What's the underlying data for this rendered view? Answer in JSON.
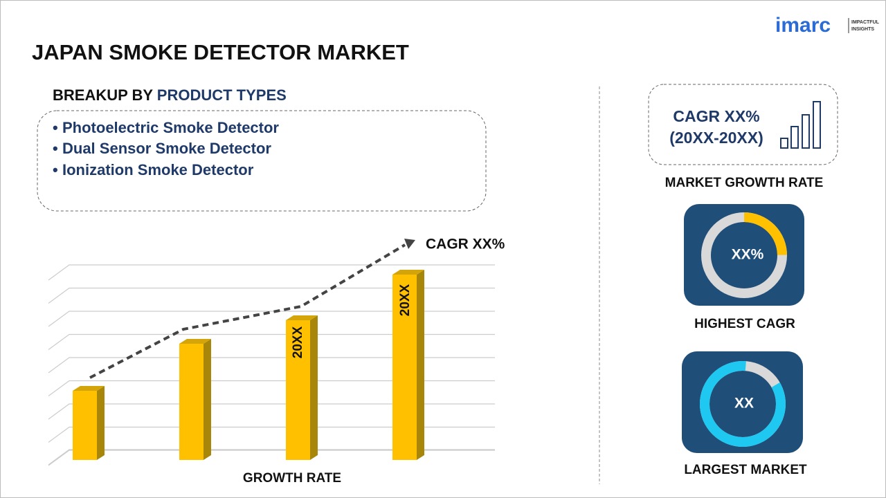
{
  "header": {
    "title": "JAPAN SMOKE DETECTOR MARKET",
    "logo": "imarc",
    "logo_tagline": [
      "IMPACTFUL",
      "INSIGHTS"
    ]
  },
  "breakup": {
    "heading": "BREAKUP BY",
    "heading_highlight": "PRODUCT TYPES",
    "items": [
      "Photoelectric Smoke Detector",
      "Dual Sensor Smoke Detector",
      "Ionization Smoke Detector"
    ]
  },
  "growth_chart": {
    "trend_label": "CAGR XX%",
    "bar_labels": [
      "20XX",
      "20XX"
    ],
    "axis_label": "GROWTH RATE"
  },
  "cagr_box": {
    "lines": [
      "CAGR XX%",
      "(20XX-20XX)"
    ],
    "caption": "MARKET GROWTH RATE"
  },
  "highest_cagr": {
    "value": "XX%",
    "caption": "HIGHEST CAGR"
  },
  "largest_market": {
    "value": "XX",
    "caption": "LARGEST MARKET"
  }
}
